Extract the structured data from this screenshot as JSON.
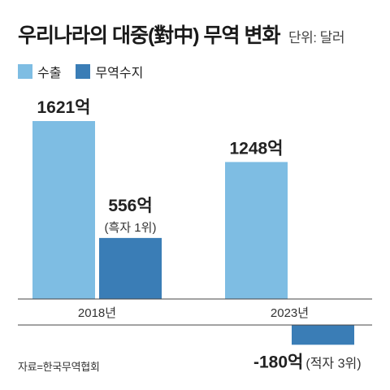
{
  "title": "우리나라의 대중(對中) 무역 변화",
  "unit_label": "단위: 달러",
  "source": "자료=한국무역협회",
  "colors": {
    "export": "#7ebde3",
    "balance": "#3a7db6",
    "axis": "#444444"
  },
  "chart_data": {
    "type": "bar",
    "categories": [
      "2018년",
      "2023년"
    ],
    "series": [
      {
        "name": "수출",
        "values": [
          1621,
          1248
        ],
        "labels": [
          "1621억",
          "1248억"
        ]
      },
      {
        "name": "무역수지",
        "values": [
          556,
          -180
        ],
        "labels": [
          "556억",
          "-180억"
        ]
      }
    ],
    "annotations": [
      "(흑자 1위)",
      "(적자 3위)"
    ],
    "title": "우리나라의 대중(對中) 무역 변화",
    "unit": "단위: 달러",
    "legend": "top-left",
    "grid": false
  }
}
